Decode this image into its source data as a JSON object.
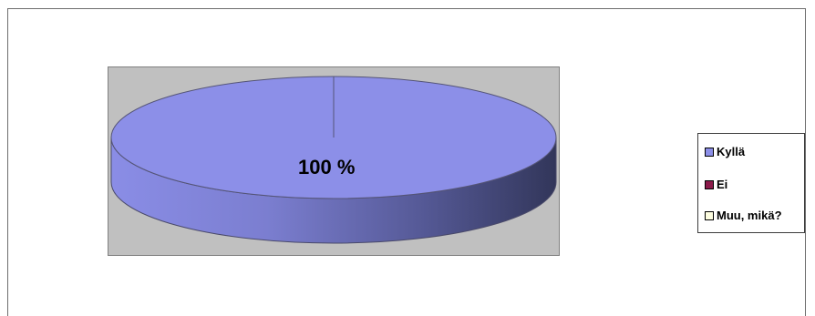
{
  "chart_data": {
    "type": "pie",
    "style": "3d",
    "categories": [
      "Kyllä",
      "Ei",
      "Muu, mikä?"
    ],
    "values": [
      100,
      0,
      0
    ],
    "data_labels": [
      "100 %"
    ],
    "colors": [
      "#8c8fe8",
      "#8b1a4a",
      "#fdfde0"
    ],
    "legend": "right",
    "title": ""
  },
  "legend_items": [
    {
      "label": "Kyllä",
      "color": "#8c8fe8"
    },
    {
      "label": "Ei",
      "color": "#8b1a4a"
    },
    {
      "label": "Muu, mikä?",
      "color": "#fdfde0"
    }
  ],
  "colors": {
    "plot_area": "#c0c0c0",
    "pie_top": "#8c8fe8",
    "pie_side_dark": "#363a62"
  }
}
